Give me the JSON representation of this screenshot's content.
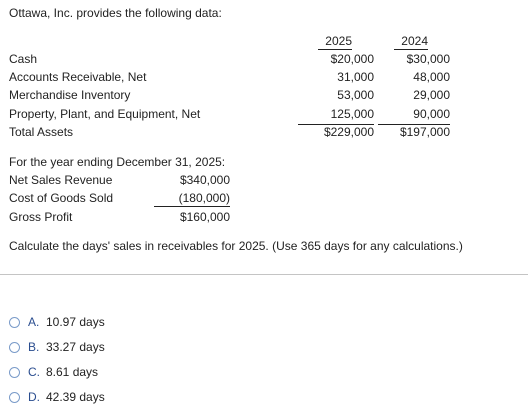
{
  "intro": "Ottawa, Inc. provides the following data:",
  "balance": {
    "headers": [
      "2025",
      "2024"
    ],
    "rows": [
      {
        "label": "Cash",
        "y2025": "$20,000",
        "y2024": "$30,000"
      },
      {
        "label": "Accounts Receivable, Net",
        "y2025": "31,000",
        "y2024": "48,000"
      },
      {
        "label": "Merchandise Inventory",
        "y2025": "53,000",
        "y2024": "29,000"
      },
      {
        "label": "Property, Plant, and Equipment, Net",
        "y2025": "125,000",
        "y2024": "90,000"
      },
      {
        "label": "Total Assets",
        "y2025": "$229,000",
        "y2024": "$197,000"
      }
    ]
  },
  "income": {
    "heading": "For the year ending December 31, 2025:",
    "rows": [
      {
        "label": "Net Sales Revenue",
        "value": "$340,000"
      },
      {
        "label": "Cost of Goods Sold",
        "value": "(180,000)"
      },
      {
        "label": "Gross Profit",
        "value": "$160,000"
      }
    ]
  },
  "question": "Calculate the days' sales in receivables for 2025. (Use 365 days for any calculations.)",
  "options": [
    {
      "letter": "A.",
      "text": "10.97 days"
    },
    {
      "letter": "B.",
      "text": "33.27 days"
    },
    {
      "letter": "C.",
      "text": "8.61 days"
    },
    {
      "letter": "D.",
      "text": "42.39 days"
    }
  ]
}
